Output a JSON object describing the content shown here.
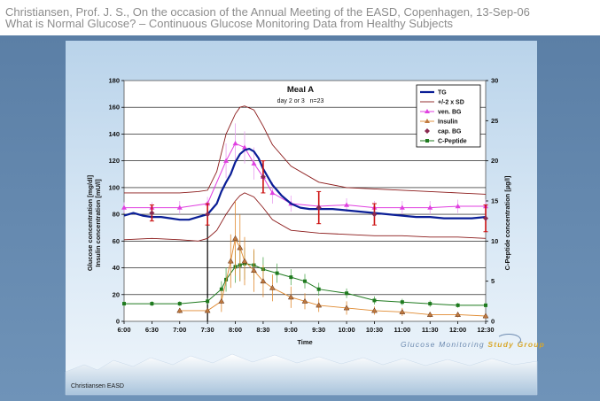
{
  "header": {
    "line1": "Christiansen, Prof. J. S., On the occasion of the Annual Meeting of the EASD, Copenhagen, 13-Sep-06",
    "line2": "What is Normal Glucose? – Continuous Glucose Monitoring Data from Healthy Subjects"
  },
  "footer": {
    "credit": "Christiansen EASD",
    "logo_text_a": "Glucose Monitoring ",
    "logo_text_b": "Study Group"
  },
  "colors": {
    "tg": "#0a1e96",
    "sd": "#8b1a1a",
    "ven": "#e040e0",
    "ven_err": "#e8a0f0",
    "insulin": "#e08a30",
    "cpep": "#1f7a1f",
    "cap": "#a01010"
  },
  "chart_data": {
    "type": "line",
    "title": "Meal A",
    "subtitle": "day 2 or 3   n=23",
    "xlabel": "Time",
    "ylabel_left_1": "Glucose concentration [mg/dl]",
    "ylabel_left_2": "Insulin concentration [mU/l]",
    "ylabel_right": "C-Peptide concentration [µg/l]",
    "ylim": [
      0,
      180
    ],
    "ylim_right": [
      0,
      30
    ],
    "yticks": [
      0,
      20,
      40,
      60,
      80,
      100,
      120,
      140,
      160,
      180
    ],
    "yticks_right": [
      0,
      5,
      10,
      15,
      20,
      25,
      30
    ],
    "xticks": [
      "6:00",
      "6:30",
      "7:00",
      "7:30",
      "8:00",
      "8:30",
      "9:00",
      "9:30",
      "10:00",
      "10:30",
      "11:00",
      "11:30",
      "12:00",
      "12:30"
    ],
    "grid": true,
    "legend_position": "top-right",
    "meal_marker_time": "7:30",
    "series": [
      {
        "name": "TG",
        "x": [
          "6:00",
          "6:10",
          "6:20",
          "6:30",
          "6:40",
          "6:50",
          "7:00",
          "7:10",
          "7:20",
          "7:30",
          "7:40",
          "7:45",
          "7:50",
          "7:55",
          "8:00",
          "8:05",
          "8:10",
          "8:15",
          "8:20",
          "8:25",
          "8:30",
          "8:40",
          "8:50",
          "9:00",
          "9:10",
          "9:20",
          "9:30",
          "9:45",
          "10:00",
          "10:15",
          "10:30",
          "10:45",
          "11:00",
          "11:15",
          "11:30",
          "11:45",
          "12:00",
          "12:15",
          "12:30"
        ],
        "y": [
          79,
          81,
          79,
          78,
          78,
          77,
          76,
          76,
          78,
          80,
          88,
          97,
          104,
          110,
          119,
          125,
          128,
          129,
          127,
          122,
          114,
          102,
          94,
          88,
          85,
          84,
          84,
          84,
          83,
          82,
          81,
          80,
          79,
          78,
          78,
          77,
          77,
          77,
          78
        ]
      },
      {
        "name": "+/-2 x SD",
        "upper": {
          "x": [
            "6:00",
            "6:30",
            "7:00",
            "7:20",
            "7:30",
            "7:40",
            "7:50",
            "8:00",
            "8:05",
            "8:10",
            "8:20",
            "8:30",
            "8:40",
            "9:00",
            "9:30",
            "10:00",
            "10:30",
            "11:00",
            "11:30",
            "12:00",
            "12:30"
          ],
          "y": [
            96,
            96,
            96,
            97,
            98,
            112,
            140,
            155,
            160,
            161,
            158,
            146,
            132,
            116,
            104,
            100,
            99,
            98,
            97,
            96,
            95
          ]
        },
        "lower": {
          "x": [
            "6:00",
            "6:30",
            "7:00",
            "7:20",
            "7:30",
            "7:40",
            "7:50",
            "8:00",
            "8:05",
            "8:10",
            "8:20",
            "8:30",
            "8:40",
            "9:00",
            "9:30",
            "10:00",
            "10:30",
            "11:00",
            "11:30",
            "12:00",
            "12:30"
          ],
          "y": [
            61,
            62,
            61,
            60,
            62,
            68,
            80,
            90,
            94,
            96,
            93,
            85,
            76,
            68,
            66,
            65,
            64,
            64,
            63,
            63,
            62
          ]
        }
      },
      {
        "name": "ven. BG",
        "x": [
          "6:00",
          "6:30",
          "7:00",
          "7:30",
          "7:50",
          "8:00",
          "8:10",
          "8:20",
          "8:30",
          "8:40",
          "9:00",
          "9:30",
          "10:00",
          "10:30",
          "11:00",
          "11:30",
          "12:00",
          "12:30"
        ],
        "y": [
          85,
          85,
          85,
          88,
          120,
          133,
          130,
          118,
          108,
          96,
          88,
          86,
          87,
          85,
          85,
          85,
          86,
          86
        ],
        "err": [
          4,
          4,
          5,
          5,
          13,
          15,
          12,
          12,
          10,
          8,
          6,
          5,
          5,
          5,
          5,
          5,
          5,
          5
        ]
      },
      {
        "name": "Insulin",
        "x": [
          "7:00",
          "7:30",
          "7:45",
          "7:55",
          "8:00",
          "8:05",
          "8:10",
          "8:20",
          "8:30",
          "8:40",
          "9:00",
          "9:15",
          "9:30",
          "10:00",
          "10:30",
          "11:00",
          "11:30",
          "12:00",
          "12:30"
        ],
        "y": [
          8,
          8,
          15,
          45,
          62,
          55,
          45,
          38,
          30,
          25,
          18,
          15,
          12,
          10,
          8,
          7,
          5,
          5,
          4
        ],
        "err": [
          2,
          2,
          8,
          20,
          28,
          25,
          18,
          16,
          12,
          10,
          8,
          6,
          5,
          5,
          3,
          3,
          2,
          2,
          2
        ]
      },
      {
        "name": "cap. BG",
        "x": [
          "6:30",
          "7:30",
          "8:30",
          "9:30",
          "10:30",
          "12:30"
        ],
        "y": [
          81,
          80,
          108,
          85,
          80,
          77
        ],
        "err": [
          6,
          8,
          12,
          12,
          8,
          10
        ]
      },
      {
        "name": "C-Peptide",
        "x": [
          "6:00",
          "6:30",
          "7:00",
          "7:30",
          "7:45",
          "7:50",
          "8:00",
          "8:05",
          "8:10",
          "8:20",
          "8:30",
          "8:45",
          "9:00",
          "9:15",
          "9:30",
          "10:00",
          "10:30",
          "11:00",
          "11:30",
          "12:00",
          "12:30"
        ],
        "y_right": [
          2.2,
          2.2,
          2.2,
          2.5,
          4.0,
          5.2,
          6.8,
          7.0,
          7.2,
          7.0,
          6.5,
          6.0,
          5.5,
          5.0,
          4.0,
          3.5,
          2.6,
          2.4,
          2.2,
          2.0,
          2.0
        ],
        "err_right": [
          0.3,
          0.3,
          0.3,
          0.4,
          1.0,
          1.5,
          2.0,
          2.0,
          2.0,
          1.8,
          1.5,
          1.2,
          1.0,
          0.9,
          0.8,
          0.6,
          0.5,
          0.4,
          0.4,
          0.3,
          0.3
        ]
      }
    ]
  }
}
